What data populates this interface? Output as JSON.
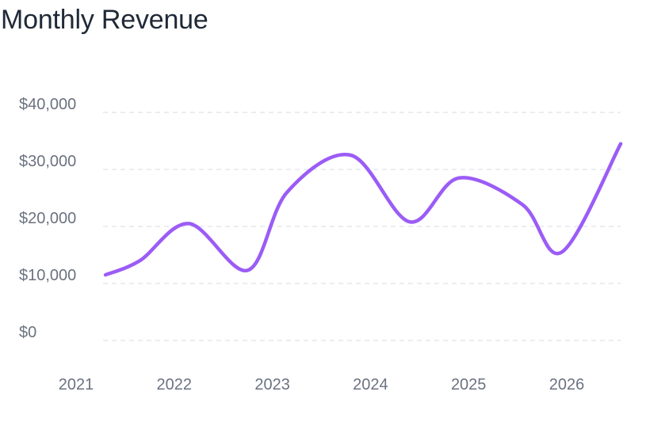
{
  "chart_data": {
    "type": "line",
    "title": "Monthly Revenue",
    "xlabel": "",
    "ylabel": "",
    "ylim": [
      0,
      40000
    ],
    "yticks": [
      0,
      10000,
      20000,
      30000,
      40000
    ],
    "ytick_labels": [
      "$0",
      "$10,000",
      "$20,000",
      "$30,000",
      "$40,000"
    ],
    "xlim": [
      2021,
      2026.65
    ],
    "xticks": [
      2021,
      2022,
      2023,
      2024,
      2025,
      2026
    ],
    "xtick_labels": [
      "2021",
      "2022",
      "2023",
      "2024",
      "2025",
      "2026"
    ],
    "grid": "horizontal dashed",
    "legend": "none",
    "line_color": "#9b5cf6",
    "grid_color": "#e5e7eb",
    "series": [
      {
        "x": [
          2021.3,
          2021.65,
          2022.15,
          2022.75,
          2023.15,
          2023.8,
          2024.4,
          2024.9,
          2025.55,
          2025.95,
          2026.55
        ],
        "values": [
          11500,
          14000,
          20500,
          12300,
          26000,
          32500,
          20800,
          28500,
          23800,
          15500,
          34500
        ]
      }
    ]
  }
}
